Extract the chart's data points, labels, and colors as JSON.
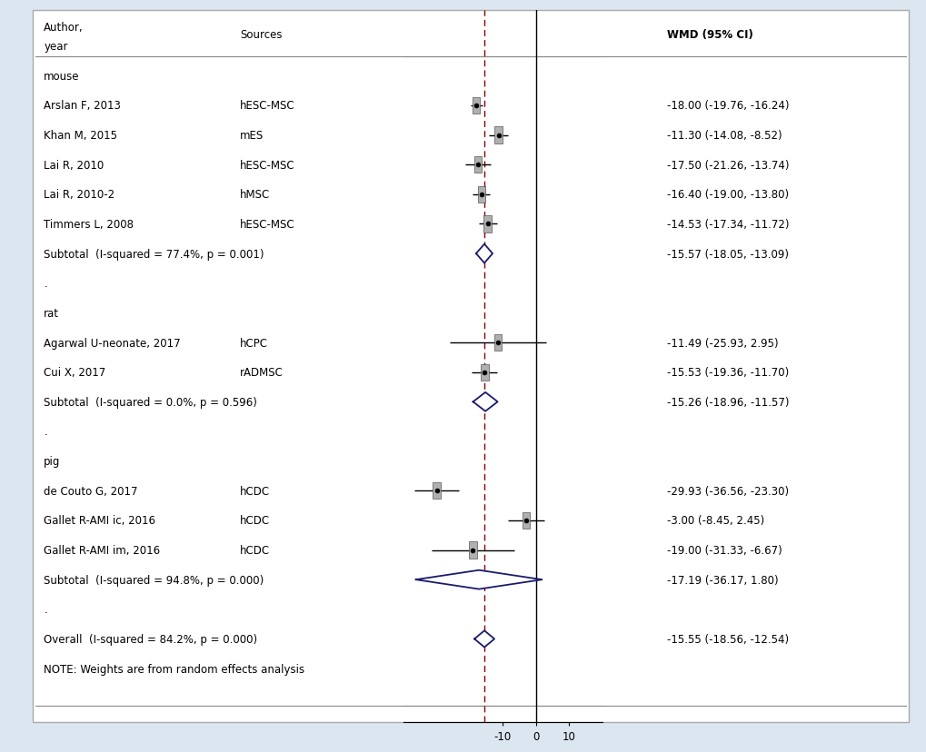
{
  "background_color": "#dce6f0",
  "panel_color": "#ffffff",
  "x_min": -40,
  "x_max": 20,
  "x_ticks": [
    -10,
    0,
    10
  ],
  "x_tick_labels": [
    "-10",
    "0",
    "10"
  ],
  "dashed_line_x": -15.55,
  "groups": [
    {
      "label": "mouse",
      "studies": [
        {
          "author": "Arslan F, 2013",
          "source": "hESC-MSC",
          "mean": -18.0,
          "ci_low": -19.76,
          "ci_high": -16.24,
          "wmd_text": "-18.00 (-19.76, -16.24)"
        },
        {
          "author": "Khan M, 2015",
          "source": "mES",
          "mean": -11.3,
          "ci_low": -14.08,
          "ci_high": -8.52,
          "wmd_text": "-11.30 (-14.08, -8.52)"
        },
        {
          "author": "Lai R, 2010",
          "source": "hESC-MSC",
          "mean": -17.5,
          "ci_low": -21.26,
          "ci_high": -13.74,
          "wmd_text": "-17.50 (-21.26, -13.74)"
        },
        {
          "author": "Lai R, 2010-2",
          "source": "hMSC",
          "mean": -16.4,
          "ci_low": -19.0,
          "ci_high": -13.8,
          "wmd_text": "-16.40 (-19.00, -13.80)"
        },
        {
          "author": "Timmers L, 2008",
          "source": "hESC-MSC",
          "mean": -14.53,
          "ci_low": -17.34,
          "ci_high": -11.72,
          "wmd_text": "-14.53 (-17.34, -11.72)"
        }
      ],
      "subtotal": {
        "mean": -15.57,
        "ci_low": -18.05,
        "ci_high": -13.09,
        "label": "Subtotal  (I-squared = 77.4%, p = 0.001)",
        "wmd_text": "-15.57 (-18.05, -13.09)"
      }
    },
    {
      "label": "rat",
      "studies": [
        {
          "author": "Agarwal U-neonate, 2017",
          "source": "hCPC",
          "mean": -11.49,
          "ci_low": -25.93,
          "ci_high": 2.95,
          "wmd_text": "-11.49 (-25.93, 2.95)"
        },
        {
          "author": "Cui X, 2017",
          "source": "rADMSC",
          "mean": -15.53,
          "ci_low": -19.36,
          "ci_high": -11.7,
          "wmd_text": "-15.53 (-19.36, -11.70)"
        }
      ],
      "subtotal": {
        "mean": -15.26,
        "ci_low": -18.96,
        "ci_high": -11.57,
        "label": "Subtotal  (I-squared = 0.0%, p = 0.596)",
        "wmd_text": "-15.26 (-18.96, -11.57)"
      }
    },
    {
      "label": "pig",
      "studies": [
        {
          "author": "de Couto G, 2017",
          "source": "hCDC",
          "mean": -29.93,
          "ci_low": -36.56,
          "ci_high": -23.3,
          "wmd_text": "-29.93 (-36.56, -23.30)"
        },
        {
          "author": "Gallet R-AMI ic, 2016",
          "source": "hCDC",
          "mean": -3.0,
          "ci_low": -8.45,
          "ci_high": 2.45,
          "wmd_text": "-3.00 (-8.45, 2.45)"
        },
        {
          "author": "Gallet R-AMI im, 2016",
          "source": "hCDC",
          "mean": -19.0,
          "ci_low": -31.33,
          "ci_high": -6.67,
          "wmd_text": "-19.00 (-31.33, -6.67)"
        }
      ],
      "subtotal": {
        "mean": -17.19,
        "ci_low": -36.17,
        "ci_high": 1.8,
        "label": "Subtotal  (I-squared = 94.8%, p = 0.000)",
        "wmd_text": "-17.19 (-36.17, 1.80)"
      }
    }
  ],
  "overall": {
    "mean": -15.55,
    "ci_low": -18.56,
    "ci_high": -12.54,
    "label": "Overall  (I-squared = 84.2%, p = 0.000)",
    "wmd_text": "-15.55 (-18.56, -12.54)"
  },
  "note": "NOTE: Weights are from random effects analysis",
  "subtotal_color": "#1a1a6e",
  "dashed_color": "#8b0000",
  "font_size": 8.5
}
